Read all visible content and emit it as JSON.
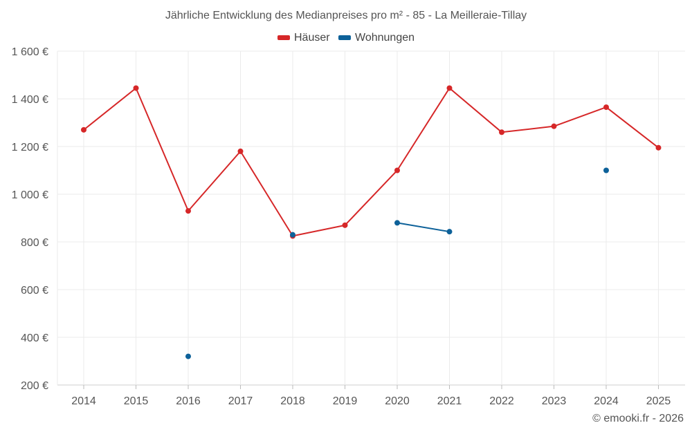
{
  "chart_data": {
    "type": "line",
    "title": "Jährliche Entwicklung des Medianpreises pro m² - 85 - La Meilleraie-Tillay",
    "xlabel": "",
    "ylabel": "",
    "x": [
      "2014",
      "2015",
      "2016",
      "2017",
      "2018",
      "2019",
      "2020",
      "2021",
      "2022",
      "2023",
      "2024",
      "2025"
    ],
    "ylim": [
      200,
      1600
    ],
    "yticks": [
      200,
      400,
      600,
      800,
      1000,
      1200,
      1400,
      1600
    ],
    "ytick_labels": [
      "200 €",
      "400 €",
      "600 €",
      "800 €",
      "1 000 €",
      "1 200 €",
      "1 400 €",
      "1 600 €"
    ],
    "legend_position": "top-center",
    "grid": true,
    "series": [
      {
        "name": "Häuser",
        "color": "#d62728",
        "values": [
          1270,
          1445,
          930,
          1180,
          825,
          870,
          1100,
          1445,
          1260,
          1285,
          1365,
          1195
        ]
      },
      {
        "name": "Wohnungen",
        "color": "#0d6199",
        "values": [
          null,
          null,
          320,
          null,
          830,
          null,
          880,
          843,
          null,
          null,
          1100,
          null
        ]
      }
    ]
  },
  "footer": {
    "credit": "© emooki.fr - 2026"
  }
}
